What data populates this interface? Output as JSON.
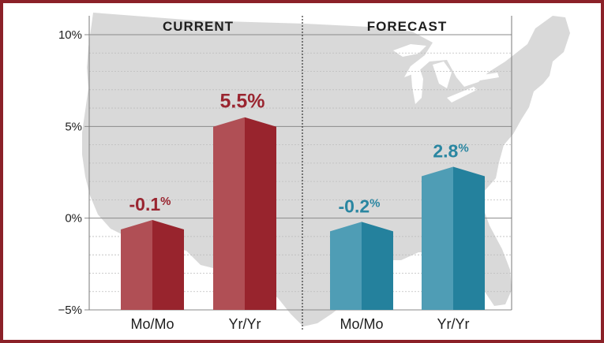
{
  "chart_data": {
    "type": "bar",
    "panels": [
      "CURRENT",
      "FORECAST"
    ],
    "categories": [
      "Mo/Mo",
      "Yr/Yr",
      "Mo/Mo",
      "Yr/Yr"
    ],
    "values": [
      -0.1,
      5.5,
      -0.2,
      2.8
    ],
    "value_labels": [
      {
        "number": "-0.1",
        "unit": "%"
      },
      {
        "number": "5.5",
        "unit": "%"
      },
      {
        "number": "-0.2",
        "unit": "%"
      },
      {
        "number": "2.8",
        "unit": "%"
      }
    ],
    "panel_index": [
      0,
      0,
      1,
      1
    ],
    "y_ticks": [
      {
        "value": 10,
        "label": "10%"
      },
      {
        "value": 5,
        "label": "5%"
      },
      {
        "value": 0,
        "label": "0%"
      },
      {
        "value": -5,
        "label": "−5%"
      }
    ],
    "ylim": [
      -5,
      10
    ],
    "grid": true,
    "colors": {
      "current_light": "#b04f55",
      "current_dark": "#98242d",
      "forecast_light": "#4f9db5",
      "forecast_dark": "#24819d",
      "frame": "#8b2128",
      "map": "#d8d8d8",
      "current_label": "#9a2530",
      "forecast_label": "#2a86a1"
    }
  }
}
